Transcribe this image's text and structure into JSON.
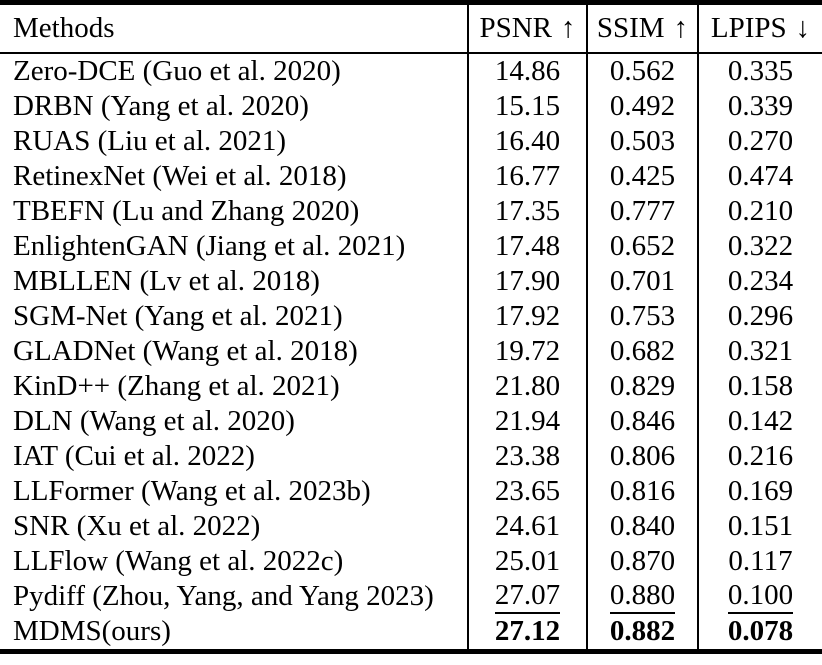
{
  "table": {
    "header": {
      "methods": "Methods",
      "psnr_label": "PSNR",
      "psnr_arrow": "↑",
      "ssim_label": "SSIM",
      "ssim_arrow": "↑",
      "lpips_label": "LPIPS",
      "lpips_arrow": "↓"
    },
    "rows": [
      {
        "method": "Zero-DCE (Guo et al. 2020)",
        "psnr": "14.86",
        "ssim": "0.562",
        "lpips": "0.335",
        "emphasis": "none"
      },
      {
        "method": "DRBN (Yang et al. 2020)",
        "psnr": "15.15",
        "ssim": "0.492",
        "lpips": "0.339",
        "emphasis": "none"
      },
      {
        "method": "RUAS (Liu et al. 2021)",
        "psnr": "16.40",
        "ssim": "0.503",
        "lpips": "0.270",
        "emphasis": "none"
      },
      {
        "method": "RetinexNet (Wei et al. 2018)",
        "psnr": "16.77",
        "ssim": "0.425",
        "lpips": "0.474",
        "emphasis": "none"
      },
      {
        "method": "TBEFN (Lu and Zhang 2020)",
        "psnr": "17.35",
        "ssim": "0.777",
        "lpips": "0.210",
        "emphasis": "none"
      },
      {
        "method": "EnlightenGAN (Jiang et al. 2021)",
        "psnr": "17.48",
        "ssim": "0.652",
        "lpips": "0.322",
        "emphasis": "none"
      },
      {
        "method": "MBLLEN (Lv et al. 2018)",
        "psnr": "17.90",
        "ssim": "0.701",
        "lpips": "0.234",
        "emphasis": "none"
      },
      {
        "method": "SGM-Net (Yang et al. 2021)",
        "psnr": "17.92",
        "ssim": "0.753",
        "lpips": "0.296",
        "emphasis": "none"
      },
      {
        "method": "GLADNet (Wang et al. 2018)",
        "psnr": "19.72",
        "ssim": "0.682",
        "lpips": "0.321",
        "emphasis": "none"
      },
      {
        "method": "KinD++ (Zhang et al. 2021)",
        "psnr": "21.80",
        "ssim": "0.829",
        "lpips": "0.158",
        "emphasis": "none"
      },
      {
        "method": "DLN (Wang et al. 2020)",
        "psnr": "21.94",
        "ssim": "0.846",
        "lpips": "0.142",
        "emphasis": "none"
      },
      {
        "method": "IAT (Cui et al. 2022)",
        "psnr": "23.38",
        "ssim": "0.806",
        "lpips": "0.216",
        "emphasis": "none"
      },
      {
        "method": "LLFormer (Wang et al. 2023b)",
        "psnr": "23.65",
        "ssim": "0.816",
        "lpips": "0.169",
        "emphasis": "none"
      },
      {
        "method": "SNR (Xu et al. 2022)",
        "psnr": "24.61",
        "ssim": "0.840",
        "lpips": "0.151",
        "emphasis": "none"
      },
      {
        "method": "LLFlow (Wang et al. 2022c)",
        "psnr": "25.01",
        "ssim": "0.870",
        "lpips": "0.117",
        "emphasis": "none"
      },
      {
        "method": "Pydiff (Zhou, Yang, and Yang 2023)",
        "psnr": "27.07",
        "ssim": "0.880",
        "lpips": "0.100",
        "emphasis": "underline"
      },
      {
        "method": "MDMS(ours)",
        "psnr": "27.12",
        "ssim": "0.882",
        "lpips": "0.078",
        "emphasis": "bold"
      }
    ]
  }
}
